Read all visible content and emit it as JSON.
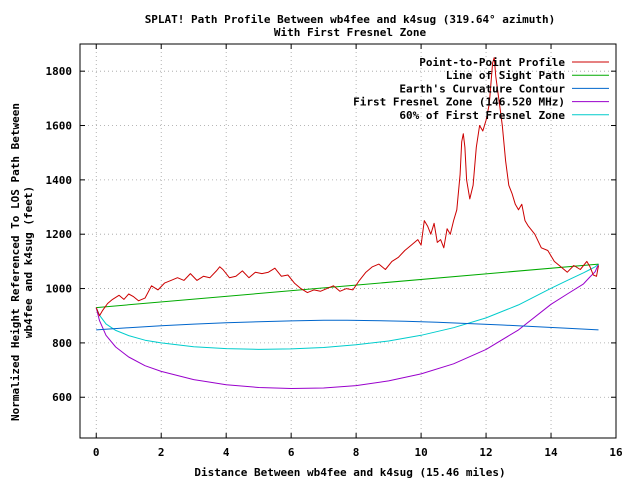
{
  "chart_data": {
    "type": "line",
    "title": "SPLAT! Path Profile Between wb4fee and k4sug (319.64° azimuth)",
    "subtitle": "With First Fresnel Zone",
    "xlabel": "Distance Between wb4fee and k4sug (15.46 miles)",
    "ylabel_lines": [
      "Normalized Height Referenced To LOS Path Between",
      "wb4fee and k4sug (feet)"
    ],
    "xlim": [
      -0.5,
      16
    ],
    "ylim": [
      450,
      1900
    ],
    "x_ticks": [
      "0",
      "2",
      "4",
      "6",
      "8",
      "10",
      "12",
      "14",
      "16"
    ],
    "y_ticks": [
      "600",
      "800",
      "1000",
      "1200",
      "1400",
      "1600",
      "1800"
    ],
    "x_tick_values": [
      0,
      2,
      4,
      6,
      8,
      10,
      12,
      14,
      16
    ],
    "y_tick_values": [
      600,
      800,
      1000,
      1200,
      1400,
      1600,
      1800
    ],
    "grid": true,
    "legend_position": "top-right",
    "series": [
      {
        "name": "Point-to-Point Profile",
        "color": "#cc0000",
        "x": [
          0,
          0.1,
          0.2,
          0.35,
          0.5,
          0.7,
          0.85,
          1.0,
          1.15,
          1.3,
          1.5,
          1.7,
          1.9,
          2.1,
          2.3,
          2.5,
          2.7,
          2.9,
          3.1,
          3.3,
          3.5,
          3.7,
          3.8,
          3.9,
          4.1,
          4.3,
          4.5,
          4.7,
          4.9,
          5.1,
          5.3,
          5.5,
          5.7,
          5.9,
          6.1,
          6.3,
          6.5,
          6.7,
          6.9,
          7.1,
          7.3,
          7.5,
          7.7,
          7.9,
          8.1,
          8.3,
          8.5,
          8.7,
          8.9,
          9.1,
          9.3,
          9.5,
          9.7,
          9.9,
          10.0,
          10.1,
          10.2,
          10.3,
          10.4,
          10.5,
          10.6,
          10.7,
          10.8,
          10.9,
          11.0,
          11.1,
          11.2,
          11.25,
          11.3,
          11.35,
          11.4,
          11.5,
          11.6,
          11.7,
          11.8,
          11.9,
          12.0,
          12.1,
          12.2,
          12.25,
          12.3,
          12.4,
          12.5,
          12.6,
          12.7,
          12.8,
          12.9,
          13.0,
          13.1,
          13.2,
          13.3,
          13.5,
          13.7,
          13.9,
          14.1,
          14.3,
          14.5,
          14.7,
          14.9,
          15.1,
          15.2,
          15.3,
          15.4,
          15.46
        ],
        "y": [
          930,
          900,
          920,
          945,
          960,
          975,
          960,
          980,
          970,
          955,
          965,
          1010,
          995,
          1020,
          1030,
          1040,
          1030,
          1055,
          1030,
          1045,
          1040,
          1065,
          1080,
          1070,
          1040,
          1045,
          1065,
          1040,
          1060,
          1055,
          1060,
          1075,
          1045,
          1050,
          1020,
          1000,
          985,
          995,
          990,
          1000,
          1010,
          990,
          1000,
          995,
          1030,
          1060,
          1080,
          1090,
          1070,
          1100,
          1115,
          1140,
          1160,
          1180,
          1160,
          1250,
          1230,
          1200,
          1240,
          1170,
          1180,
          1150,
          1220,
          1200,
          1250,
          1290,
          1420,
          1540,
          1570,
          1520,
          1400,
          1330,
          1380,
          1520,
          1600,
          1580,
          1620,
          1680,
          1830,
          1850,
          1780,
          1690,
          1600,
          1470,
          1380,
          1350,
          1310,
          1290,
          1310,
          1250,
          1230,
          1200,
          1150,
          1140,
          1100,
          1080,
          1060,
          1085,
          1070,
          1100,
          1080,
          1050,
          1045,
          1085
        ]
      },
      {
        "name": "Line of Sight Path",
        "color": "#00aa00",
        "x": [
          0,
          15.46
        ],
        "y": [
          930,
          1090
        ]
      },
      {
        "name": "Earth's Curvature Contour",
        "color": "#0066cc",
        "x": [
          0,
          1,
          2,
          3,
          4,
          5,
          6,
          7,
          7.73,
          8.5,
          9.5,
          10.5,
          11.5,
          12.5,
          13.5,
          14.5,
          15.46
        ],
        "y": [
          848,
          856,
          863,
          869,
          874,
          878,
          881,
          883,
          883,
          882,
          880,
          876,
          871,
          866,
          860,
          854,
          848
        ]
      },
      {
        "name": "First Fresnel Zone (146.520 MHz)",
        "color": "#9900cc",
        "x": [
          0,
          0.1,
          0.3,
          0.6,
          1,
          1.5,
          2,
          3,
          4,
          5,
          6,
          7,
          8,
          9,
          10,
          11,
          12,
          13,
          14,
          14.5,
          15,
          15.2,
          15.36,
          15.46
        ],
        "y": [
          930,
          882,
          828,
          785,
          748,
          716,
          695,
          665,
          646,
          636,
          632,
          634,
          643,
          660,
          686,
          723,
          776,
          848,
          942,
          980,
          1017,
          1043,
          1062,
          1090
        ]
      },
      {
        "name": "60% of First Fresnel Zone",
        "color": "#00cccc",
        "x": [
          0,
          0.1,
          0.3,
          0.6,
          1,
          1.5,
          2,
          3,
          4,
          5,
          6,
          7,
          8,
          9,
          10,
          11,
          12,
          13,
          14,
          14.5,
          15,
          15.2,
          15.36,
          15.46
        ],
        "y": [
          930,
          902,
          870,
          846,
          827,
          810,
          800,
          786,
          779,
          776,
          778,
          783,
          793,
          807,
          828,
          856,
          892,
          940,
          1001,
          1030,
          1058,
          1070,
          1080,
          1090
        ]
      }
    ]
  }
}
